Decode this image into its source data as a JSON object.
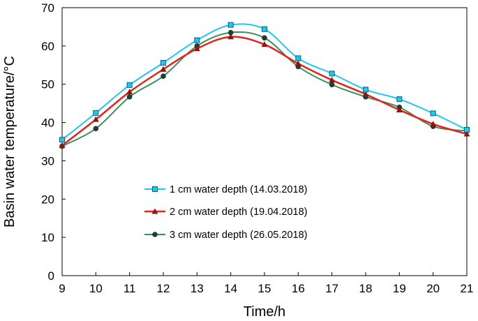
{
  "chart_data": {
    "type": "line",
    "title": "",
    "xlabel": "Time/h",
    "ylabel": "Basin water temperature/°C",
    "x": [
      9,
      10,
      11,
      12,
      13,
      14,
      15,
      16,
      17,
      18,
      19,
      20,
      21
    ],
    "xlim": [
      9,
      21
    ],
    "ylim": [
      0,
      70
    ],
    "xticks": [
      "9",
      "10",
      "11",
      "12",
      "13",
      "14",
      "15",
      "16",
      "17",
      "18",
      "19",
      "20",
      "21"
    ],
    "yticks": [
      "0",
      "10",
      "20",
      "30",
      "40",
      "50",
      "60",
      "70"
    ],
    "grid": false,
    "legend_position": "center-left",
    "series": [
      {
        "name": "1 cm water depth (14.03.2018)",
        "color": "#1ec8f0",
        "marker": "square",
        "values": [
          35.5,
          42.5,
          49.8,
          55.6,
          61.5,
          65.5,
          64.4,
          56.8,
          52.8,
          48.6,
          46.1,
          42.4,
          38.1
        ]
      },
      {
        "name": "2 cm water depth (19.04.2018)",
        "color": "#e8231c",
        "marker": "triangle",
        "values": [
          34.0,
          40.8,
          48.0,
          53.9,
          59.3,
          62.4,
          60.4,
          55.4,
          51.1,
          47.4,
          43.3,
          39.6,
          37.0
        ]
      },
      {
        "name": "3 cm water depth (26.05.2018)",
        "color": "#3a9060",
        "marker": "circle",
        "values": [
          33.8,
          38.4,
          46.7,
          52.1,
          60.0,
          63.5,
          62.1,
          54.6,
          49.9,
          46.7,
          44.0,
          39.0,
          37.8
        ]
      }
    ]
  }
}
